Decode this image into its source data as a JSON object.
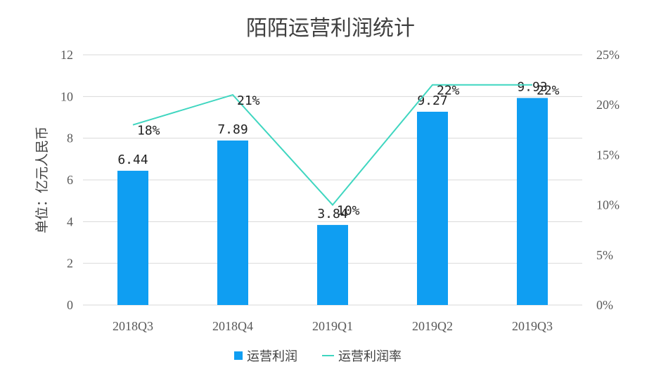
{
  "chart_data": {
    "type": "bar",
    "title": "陌陌运营利润统计",
    "ylabel": "单位：亿元人民币",
    "categories": [
      "2018Q3",
      "2018Q4",
      "2019Q1",
      "2019Q2",
      "2019Q3"
    ],
    "ylim": [
      0,
      12
    ],
    "yticks": [
      "0",
      "2",
      "4",
      "6",
      "8",
      "10",
      "12"
    ],
    "y2lim": [
      0,
      25
    ],
    "y2ticks": [
      "0%",
      "5%",
      "10%",
      "15%",
      "20%",
      "25%"
    ],
    "grid": true,
    "legend_position": "bottom",
    "series": [
      {
        "name": "运营利润",
        "type": "bar",
        "axis": "left",
        "color": "#0f9ef2",
        "values": [
          6.44,
          7.89,
          3.84,
          9.27,
          9.93
        ],
        "labels": [
          "6.44",
          "7.89",
          "3.84",
          "9.27",
          "9.93"
        ]
      },
      {
        "name": "运营利润率",
        "type": "line",
        "axis": "right",
        "color": "#3fd6c0",
        "values": [
          18,
          21,
          10,
          22,
          22
        ],
        "labels": [
          "18%",
          "21%",
          "10%",
          "22%",
          "22%"
        ]
      }
    ]
  }
}
